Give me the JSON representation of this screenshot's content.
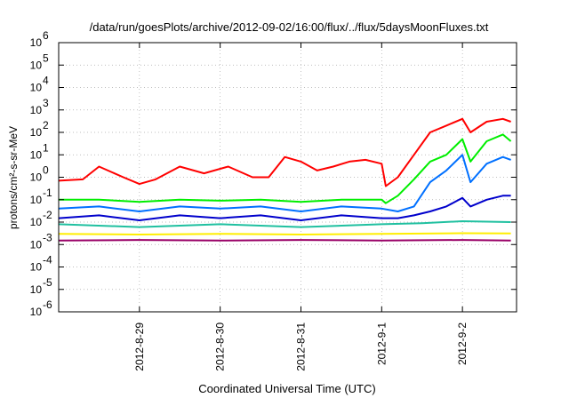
{
  "chart_data": {
    "type": "line",
    "title": "/data/run/goesPlots/archive/2012-09-02/16:00/flux/../flux/5daysMoonFluxes.txt",
    "xlabel": "Coordinated Universal Time (UTC)",
    "ylabel": "protons/cm²-s-sr-MeV",
    "yscale": "log",
    "ylim": [
      1e-06,
      1000000.0
    ],
    "xlim": [
      0,
      5.67
    ],
    "grid": true,
    "y_ticks": [
      {
        "exp": "-6",
        "value": 1e-06
      },
      {
        "exp": "-5",
        "value": 1e-05
      },
      {
        "exp": "-4",
        "value": 0.0001
      },
      {
        "exp": "-3",
        "value": 0.001
      },
      {
        "exp": "-2",
        "value": 0.01
      },
      {
        "exp": "-1",
        "value": 0.1
      },
      {
        "exp": "0",
        "value": 1
      },
      {
        "exp": "1",
        "value": 10
      },
      {
        "exp": "2",
        "value": 100
      },
      {
        "exp": "3",
        "value": 1000
      },
      {
        "exp": "4",
        "value": 10000
      },
      {
        "exp": "5",
        "value": 100000
      },
      {
        "exp": "6",
        "value": 1000000
      }
    ],
    "x_ticks": [
      {
        "label": "2012-8-29",
        "x": 1
      },
      {
        "label": "2012-8-30",
        "x": 2
      },
      {
        "label": "2012-8-31",
        "x": 3
      },
      {
        "label": "2012-9-1",
        "x": 4
      },
      {
        "label": "2012-9-2",
        "x": 5
      }
    ],
    "series": [
      {
        "color": "#ff0000",
        "points": [
          [
            0,
            0.7
          ],
          [
            0.3,
            0.8
          ],
          [
            0.5,
            3
          ],
          [
            0.8,
            1
          ],
          [
            1.0,
            0.5
          ],
          [
            1.2,
            0.8
          ],
          [
            1.5,
            3
          ],
          [
            1.8,
            1.5
          ],
          [
            2.1,
            3
          ],
          [
            2.4,
            1
          ],
          [
            2.6,
            1
          ],
          [
            2.8,
            8
          ],
          [
            3.0,
            5
          ],
          [
            3.2,
            2
          ],
          [
            3.4,
            3
          ],
          [
            3.6,
            5
          ],
          [
            3.8,
            6
          ],
          [
            4.0,
            4
          ],
          [
            4.05,
            0.4
          ],
          [
            4.2,
            1
          ],
          [
            4.4,
            10
          ],
          [
            4.6,
            100
          ],
          [
            4.8,
            200
          ],
          [
            5.0,
            400
          ],
          [
            5.1,
            100
          ],
          [
            5.3,
            300
          ],
          [
            5.5,
            400
          ],
          [
            5.6,
            300
          ]
        ]
      },
      {
        "color": "#00ee00",
        "points": [
          [
            0,
            0.1
          ],
          [
            0.5,
            0.1
          ],
          [
            1.0,
            0.08
          ],
          [
            1.5,
            0.1
          ],
          [
            2.0,
            0.09
          ],
          [
            2.5,
            0.1
          ],
          [
            3.0,
            0.08
          ],
          [
            3.5,
            0.1
          ],
          [
            4.0,
            0.1
          ],
          [
            4.05,
            0.07
          ],
          [
            4.2,
            0.15
          ],
          [
            4.4,
            0.8
          ],
          [
            4.6,
            5
          ],
          [
            4.8,
            10
          ],
          [
            5.0,
            50
          ],
          [
            5.1,
            5
          ],
          [
            5.3,
            40
          ],
          [
            5.5,
            80
          ],
          [
            5.6,
            40
          ]
        ]
      },
      {
        "color": "#0070ff",
        "points": [
          [
            0,
            0.04
          ],
          [
            0.5,
            0.05
          ],
          [
            1.0,
            0.03
          ],
          [
            1.5,
            0.05
          ],
          [
            2.0,
            0.04
          ],
          [
            2.5,
            0.05
          ],
          [
            3.0,
            0.03
          ],
          [
            3.5,
            0.05
          ],
          [
            4.0,
            0.04
          ],
          [
            4.2,
            0.03
          ],
          [
            4.4,
            0.05
          ],
          [
            4.6,
            0.6
          ],
          [
            4.8,
            2
          ],
          [
            5.0,
            10
          ],
          [
            5.1,
            0.6
          ],
          [
            5.3,
            4
          ],
          [
            5.5,
            8
          ],
          [
            5.6,
            6
          ]
        ]
      },
      {
        "color": "#0000cc",
        "points": [
          [
            0,
            0.015
          ],
          [
            0.5,
            0.02
          ],
          [
            1.0,
            0.012
          ],
          [
            1.5,
            0.02
          ],
          [
            2.0,
            0.015
          ],
          [
            2.5,
            0.02
          ],
          [
            3.0,
            0.012
          ],
          [
            3.5,
            0.02
          ],
          [
            4.0,
            0.015
          ],
          [
            4.2,
            0.015
          ],
          [
            4.4,
            0.02
          ],
          [
            4.6,
            0.03
          ],
          [
            4.8,
            0.05
          ],
          [
            5.0,
            0.12
          ],
          [
            5.1,
            0.05
          ],
          [
            5.3,
            0.1
          ],
          [
            5.5,
            0.15
          ],
          [
            5.6,
            0.15
          ]
        ]
      },
      {
        "color": "#20c0a0",
        "points": [
          [
            0,
            0.008
          ],
          [
            1.0,
            0.006
          ],
          [
            2.0,
            0.008
          ],
          [
            3.0,
            0.006
          ],
          [
            4.0,
            0.008
          ],
          [
            4.5,
            0.009
          ],
          [
            5.0,
            0.011
          ],
          [
            5.6,
            0.01
          ]
        ]
      },
      {
        "color": "#ffee00",
        "points": [
          [
            0,
            0.003
          ],
          [
            1.0,
            0.0028
          ],
          [
            2.0,
            0.003
          ],
          [
            3.0,
            0.0028
          ],
          [
            4.0,
            0.003
          ],
          [
            5.0,
            0.0032
          ],
          [
            5.6,
            0.0031
          ]
        ]
      },
      {
        "color": "#990066",
        "points": [
          [
            0,
            0.0015
          ],
          [
            1.0,
            0.0016
          ],
          [
            2.0,
            0.0015
          ],
          [
            3.0,
            0.0016
          ],
          [
            4.0,
            0.0015
          ],
          [
            5.0,
            0.0016
          ],
          [
            5.6,
            0.0015
          ]
        ]
      }
    ]
  }
}
